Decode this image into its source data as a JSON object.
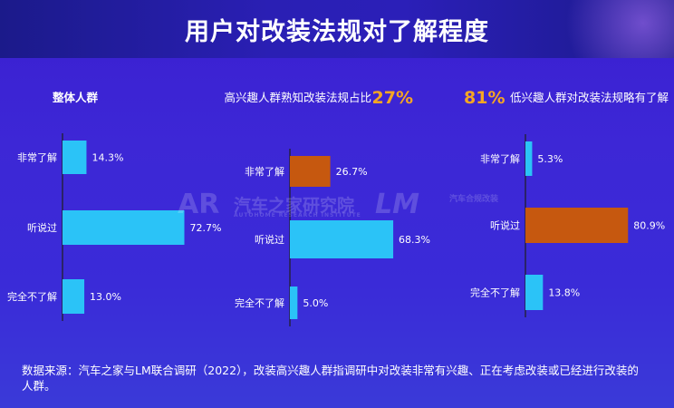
{
  "title": "用户对改装法规对了解程度",
  "colors": {
    "blue": "#2bc3f7",
    "orange": "#c6580f",
    "highlight": "#f5a623",
    "axis": "#1f1f1f",
    "text": "#ffffff"
  },
  "chart_data": [
    {
      "type": "bar",
      "orientation": "horizontal",
      "title": "整体人群",
      "categories": [
        "非常了解",
        "听说过",
        "完全不了解"
      ],
      "values": [
        14.3,
        72.7,
        13.0
      ],
      "value_labels": [
        "14.3%",
        "72.7%",
        "13.0%"
      ],
      "highlight_index": 1
    },
    {
      "type": "bar",
      "orientation": "horizontal",
      "title": "高兴趣人群熟知改装法规占比",
      "title_highlight": "27%",
      "categories": [
        "非常了解",
        "听说过",
        "完全不了解"
      ],
      "values": [
        26.7,
        68.3,
        5.0
      ],
      "value_labels": [
        "26.7%",
        "68.3%",
        "5.0%"
      ],
      "highlight_index": 0
    },
    {
      "type": "bar",
      "orientation": "horizontal",
      "title": "低兴趣人群对改装法规略有了解",
      "title_highlight": "81%",
      "categories": [
        "非常了解",
        "听说过",
        "完全不了解"
      ],
      "values": [
        5.3,
        80.9,
        13.8
      ],
      "value_labels": [
        "5.3%",
        "80.9%",
        "13.8%"
      ],
      "highlight_index": 1
    }
  ],
  "watermarks": {
    "logo_left": "AR",
    "logo_left_text": "汽车之家研究院",
    "logo_left_sub": "AUTOHOME RESEARCH INSTITUTE",
    "logo_right": "LM",
    "logo_right_text": "汽车合规改装"
  },
  "source_text": "数据来源：汽车之家与LM联合调研（2022），改装高兴趣人群指调研中对改装非常有兴趣、正在考虑改装或已经进行改装的人群。"
}
